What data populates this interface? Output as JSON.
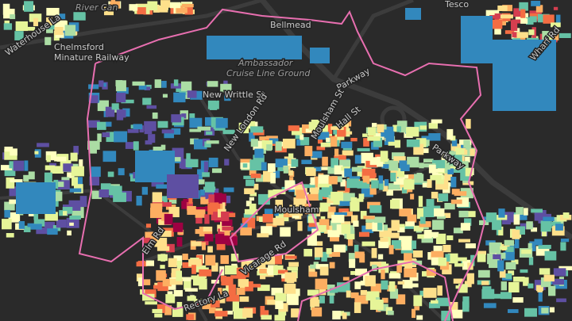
{
  "map": {
    "labels": [
      "River Can",
      "Chelmsford",
      "Minature Railway",
      "Waterhouse La",
      "Bellmead",
      "Tesco",
      "Ambassador",
      "Cruise Line Ground",
      "New Writtle St",
      "New London Rd",
      "Parkway",
      "Parkway",
      "Wharf Rd",
      "Moulsham St",
      "Hall St",
      "Moulsham",
      "Elm Rd",
      "Vicarage Rd",
      "Rectory La"
    ]
  }
}
